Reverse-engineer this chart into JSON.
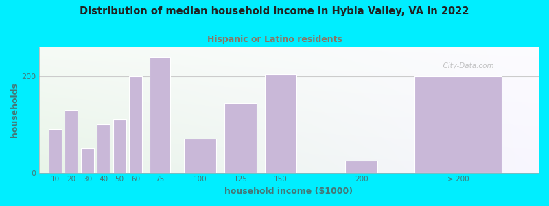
{
  "title": "Distribution of median household income in Hybla Valley, VA in 2022",
  "subtitle": "Hispanic or Latino residents",
  "xlabel": "household income ($1000)",
  "ylabel": "households",
  "bar_labels": [
    "10",
    "20",
    "30",
    "40",
    "50",
    "60",
    "75",
    "100",
    "125",
    "150",
    "200",
    "> 200"
  ],
  "bar_heights": [
    90,
    130,
    50,
    100,
    110,
    200,
    240,
    70,
    145,
    205,
    25,
    200
  ],
  "bar_color": "#c9b8d8",
  "bar_edge_color": "#ffffff",
  "background_outer": "#00eeff",
  "title_color": "#222222",
  "subtitle_color": "#887766",
  "axis_label_color": "#447777",
  "tick_color": "#447777",
  "ylim": [
    0,
    260
  ],
  "watermark": "City-Data.com",
  "bar_centers": [
    10,
    20,
    30,
    40,
    50,
    60,
    75,
    100,
    125,
    150,
    200,
    260
  ],
  "bar_widths": [
    9,
    9,
    9,
    9,
    9,
    9,
    14,
    22,
    22,
    22,
    22,
    60
  ],
  "grid_color": "#cccccc"
}
